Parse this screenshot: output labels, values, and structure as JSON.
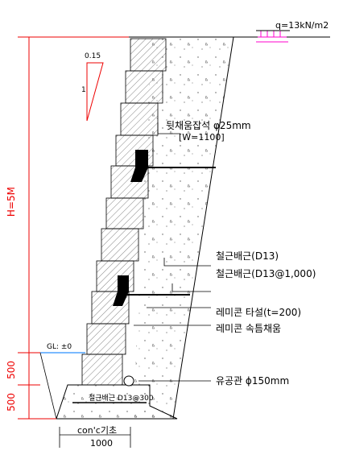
{
  "load": "q=13kN/m2",
  "slope": {
    "horizontal": "0.15",
    "vertical": "1"
  },
  "height_label": "H=5M",
  "dim_500_top": "500",
  "dim_500_bottom": "500",
  "gl_label": "GL: ±0",
  "backfill_label": "뒷채움잡석 φ25mm",
  "backfill_sub": "[W=1100]",
  "rebar_label_1": "철근배근(D13)",
  "rebar_label_2": "철근배근(D13@1,000)",
  "concrete_label": "레미콘 타설(t=200)",
  "concrete_fill_label": "레미콘 속틈채움",
  "pipe_label": "유공관 ϕ150mm",
  "footing_rebar_label": "철근배근 D13@300",
  "footing_label": "con'c기초",
  "footing_width": "1000",
  "colors": {
    "dimension": "#e00000",
    "load_accent": "#ff00cc",
    "gl_line": "#4fa3ff",
    "block_fill": "#000000"
  }
}
